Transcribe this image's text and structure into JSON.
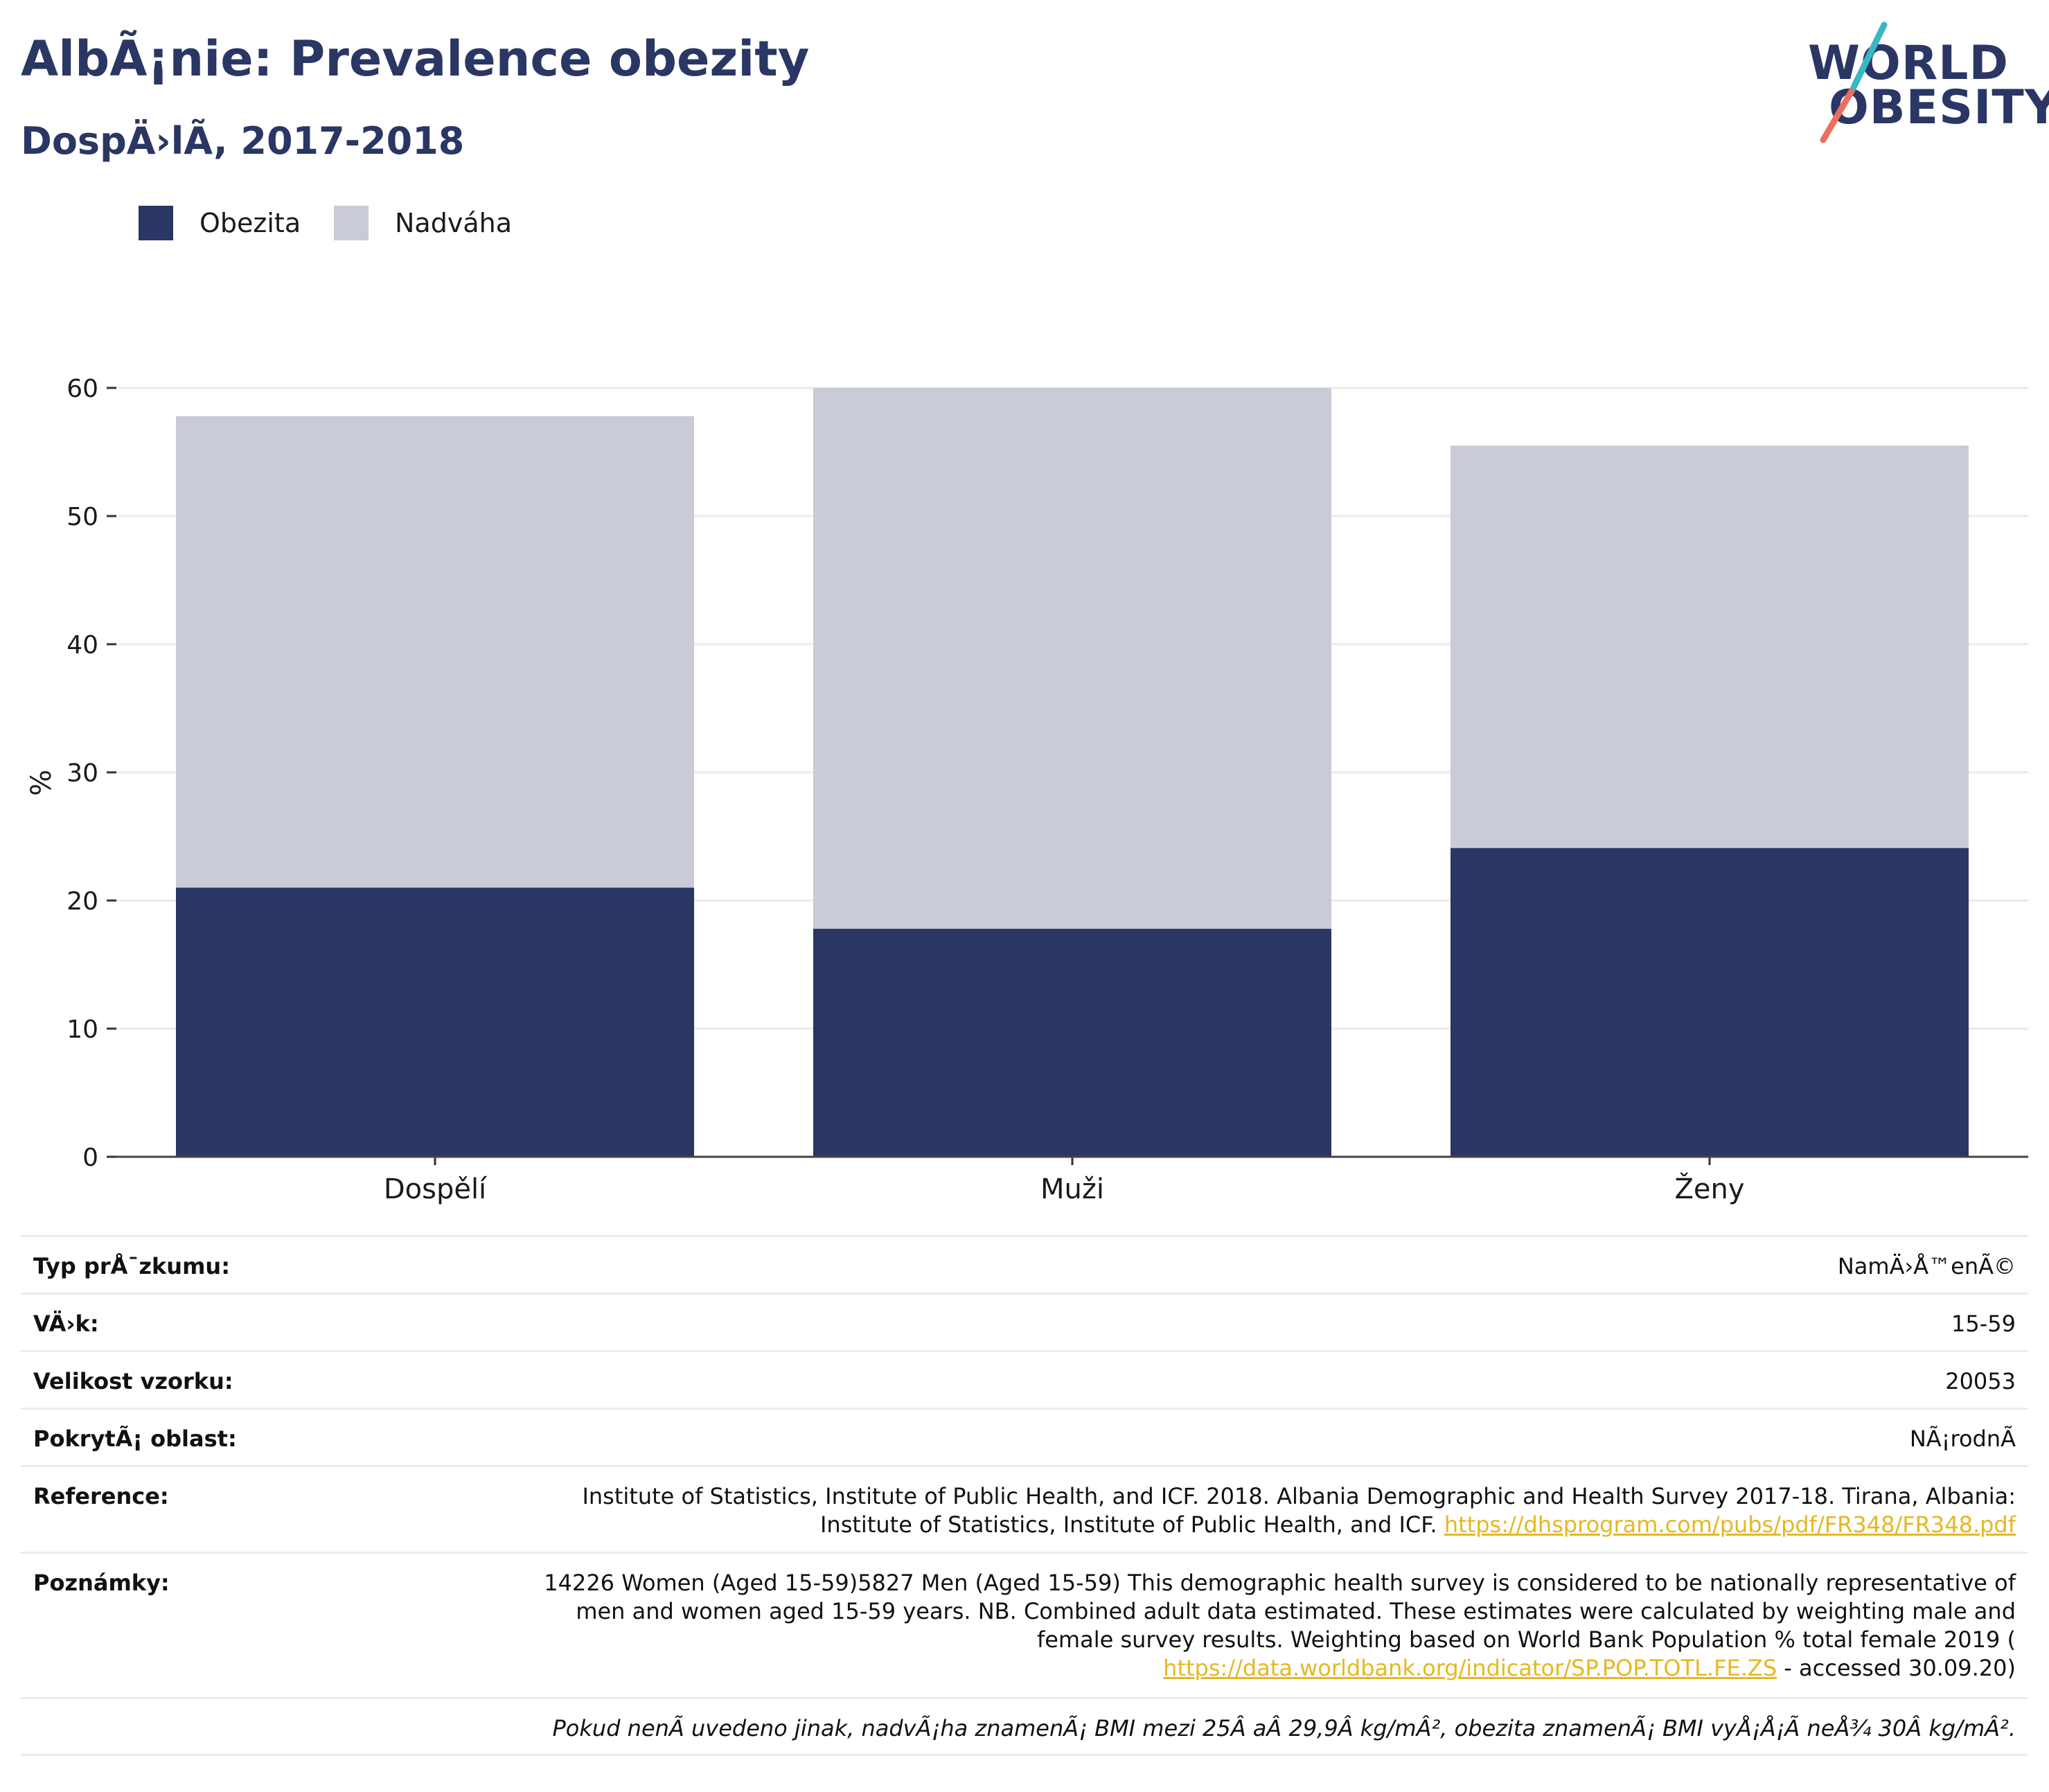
{
  "header": {
    "title": "AlbÃ¡nie: Prevalence obezity",
    "subtitle": "DospÄ›lÃ, 2017-2018"
  },
  "logo": {
    "line1": "WORLD",
    "line2": "OBESITY",
    "accent_colors": [
      "#3bb6c4",
      "#e8705f"
    ]
  },
  "chart_data": {
    "type": "bar",
    "stacked": true,
    "categories": [
      "Dospělí",
      "Muži",
      "Ženy"
    ],
    "series": [
      {
        "name": "Obezita",
        "values": [
          21.0,
          17.8,
          24.1
        ],
        "color": "#2a3663"
      },
      {
        "name": "Nadváha",
        "values": [
          36.8,
          42.2,
          31.4
        ],
        "color": "#c9cbd6"
      }
    ],
    "ylabel": "%",
    "xlabel": "",
    "ylim": [
      0,
      60
    ],
    "yticks": [
      0,
      10,
      20,
      30,
      40,
      50,
      60
    ],
    "grid": true,
    "legend_position": "top-left"
  },
  "info": {
    "rows": [
      {
        "label": "Typ prÅ¯zkumu:",
        "value": "NamÄ›Å™enÃ©"
      },
      {
        "label": "VÄ›k:",
        "value": "15-59"
      },
      {
        "label": "Velikost vzorku:",
        "value": "20053"
      },
      {
        "label": "PokrytÃ¡ oblast:",
        "value": "NÃ¡rodnÃ"
      }
    ],
    "reference": {
      "label": "Reference:",
      "line1": "Institute of Statistics, Institute of Public Health, and ICF. 2018. Albania Demographic and Health Survey 2017-18. Tirana, Albania:",
      "line2": "Institute of Statistics, Institute of Public Health, and ICF.",
      "link": "https://dhsprogram.com/pubs/pdf/FR348/FR348.pdf"
    },
    "notes": {
      "label": "Poznámky:",
      "line1": "14226 Women (Aged 15-59)5827 Men (Aged 15-59) This demographic health survey is considered to be nationally representative of",
      "line2": "men and women aged 15-59 years. NB. Combined adult data estimated. These estimates were calculated by weighting male and",
      "line3": "female survey results. Weighting based on World Bank Population % total female 2019 (",
      "link": "https://data.worldbank.org/indicator/SP.POP.TOTL.FE.ZS",
      "after_link": " - accessed 30.09.20)"
    },
    "footnote": "Pokud nenÃ uvedeno jinak, nadvÃ¡ha znamenÃ¡ BMI mezi 25Â aÂ 29,9Â kg/mÂ², obezita znamenÃ¡ BMI vyÅ¡Å¡Ã neÅ¾ 30Â kg/mÂ²."
  }
}
